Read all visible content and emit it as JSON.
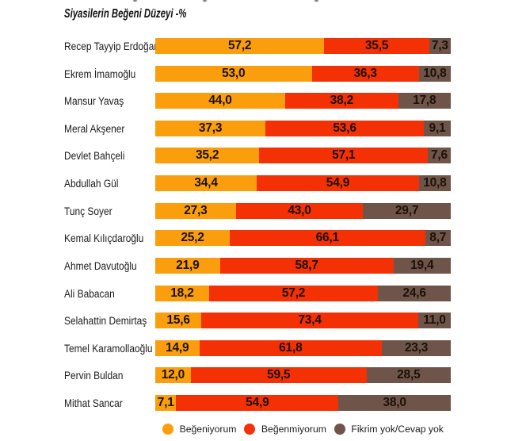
{
  "title": "Siyasilerin Beğeni Düzeyi -%",
  "colors": {
    "approve": "#FB9E0D",
    "disapprove": "#F43005",
    "no_opinion": "#6F5449",
    "text": "#1C1C1C",
    "background": "#FFFFFF"
  },
  "legend": [
    {
      "label": "Beğeniyorum",
      "color_key": "approve"
    },
    {
      "label": "Beğenmiyorum",
      "color_key": "disapprove"
    },
    {
      "label": "Fikrim yok/Cevap yok",
      "color_key": "no_opinion"
    }
  ],
  "chart_data": {
    "type": "bar",
    "orientation": "horizontal",
    "stacked": true,
    "unit": "%",
    "title": "Siyasilerin Beğeni Düzeyi -%",
    "xlim": [
      0,
      100
    ],
    "decimal_separator": ",",
    "categories": [
      "Recep Tayyip Erdoğan",
      "Ekrem İmamoğlu",
      "Mansur Yavaş",
      "Meral Akşener",
      "Devlet Bahçeli",
      "Abdullah Gül",
      "Tunç Soyer",
      "Kemal Kılıçdaroğlu",
      "Ahmet Davutoğlu",
      "Ali Babacan",
      "Selahattin Demirtaş",
      "Temel Karamollaoğlu",
      "Pervin Buldan",
      "Mithat Sancar"
    ],
    "series": [
      {
        "name": "Beğeniyorum",
        "color_key": "approve",
        "values": [
          57.2,
          53.0,
          44.0,
          37.3,
          35.2,
          34.4,
          27.3,
          25.2,
          21.9,
          18.2,
          15.6,
          14.9,
          12.0,
          7.1
        ]
      },
      {
        "name": "Beğenmiyorum",
        "color_key": "disapprove",
        "values": [
          35.5,
          36.3,
          38.2,
          53.6,
          57.1,
          54.9,
          43.0,
          66.1,
          58.7,
          57.2,
          73.4,
          61.8,
          59.5,
          54.9
        ]
      },
      {
        "name": "Fikrim yok/Cevap yok",
        "color_key": "no_opinion",
        "values": [
          7.3,
          10.8,
          17.8,
          9.1,
          7.6,
          10.8,
          29.7,
          8.7,
          19.4,
          24.6,
          11.0,
          23.3,
          28.5,
          38.0
        ]
      }
    ]
  }
}
